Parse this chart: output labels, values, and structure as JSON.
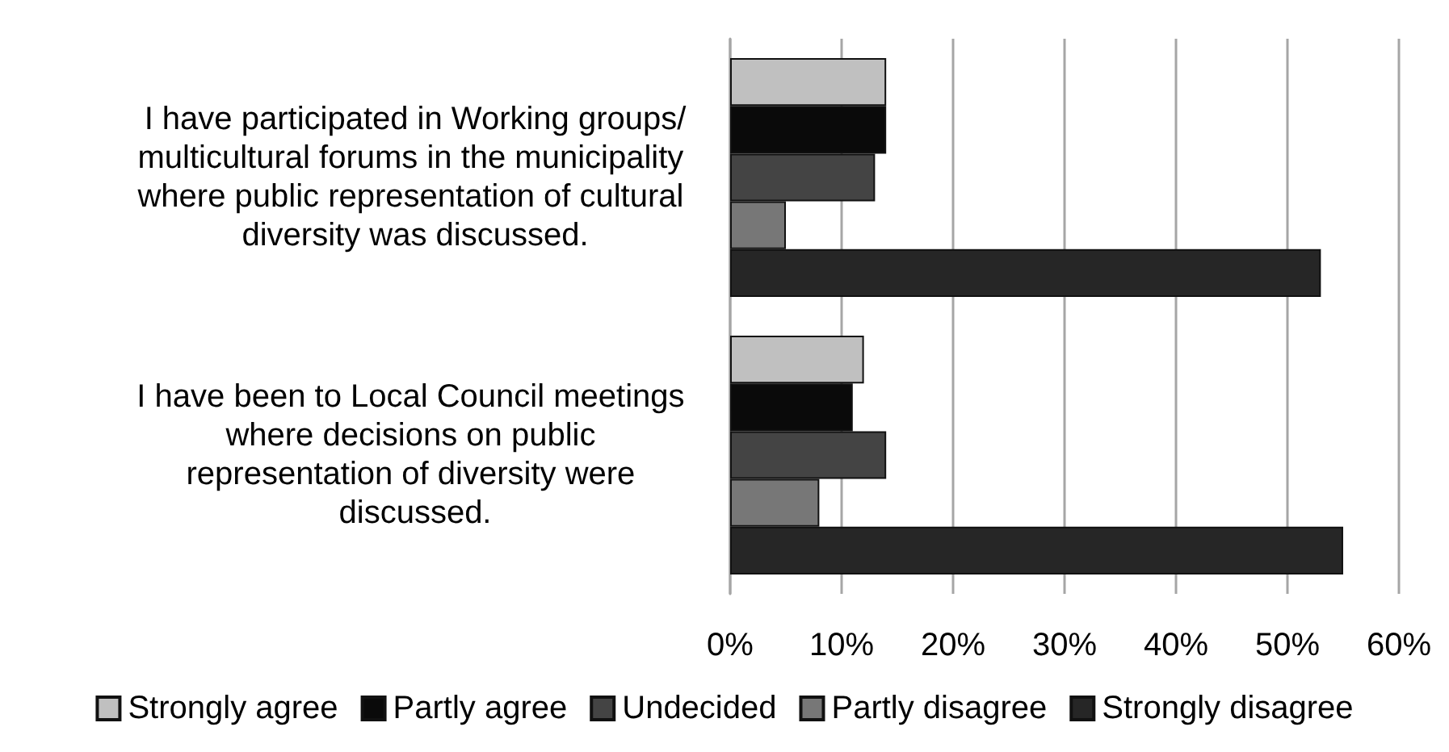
{
  "chart_data": {
    "type": "bar",
    "orientation": "horizontal",
    "categories": [
      "I have participated in Working groups/multicultural forums in the municipality where public representation of cultural diversity was discussed.",
      "I have been to Local Council meetings where decisions on public representation of diversity were discussed."
    ],
    "series": [
      {
        "name": "Strongly agree",
        "color": "#c0c0c0",
        "values": [
          14,
          12
        ]
      },
      {
        "name": "Partly agree",
        "color": "#0a0a0a",
        "values": [
          14,
          11
        ]
      },
      {
        "name": "Undecided",
        "color": "#444444",
        "values": [
          13,
          14
        ]
      },
      {
        "name": "Partly disagree",
        "color": "#777777",
        "values": [
          5,
          8
        ]
      },
      {
        "name": "Strongly disagree",
        "color": "#262626",
        "values": [
          53,
          55
        ]
      }
    ],
    "xlim": [
      0,
      60
    ],
    "xticks": [
      {
        "value": 0,
        "label": "0%"
      },
      {
        "value": 10,
        "label": "10%"
      },
      {
        "value": 20,
        "label": "20%"
      },
      {
        "value": 30,
        "label": "30%"
      },
      {
        "value": 40,
        "label": "40%"
      },
      {
        "value": 50,
        "label": "50%"
      },
      {
        "value": 60,
        "label": "60%"
      }
    ],
    "grid": "x",
    "legend": "bottom"
  }
}
